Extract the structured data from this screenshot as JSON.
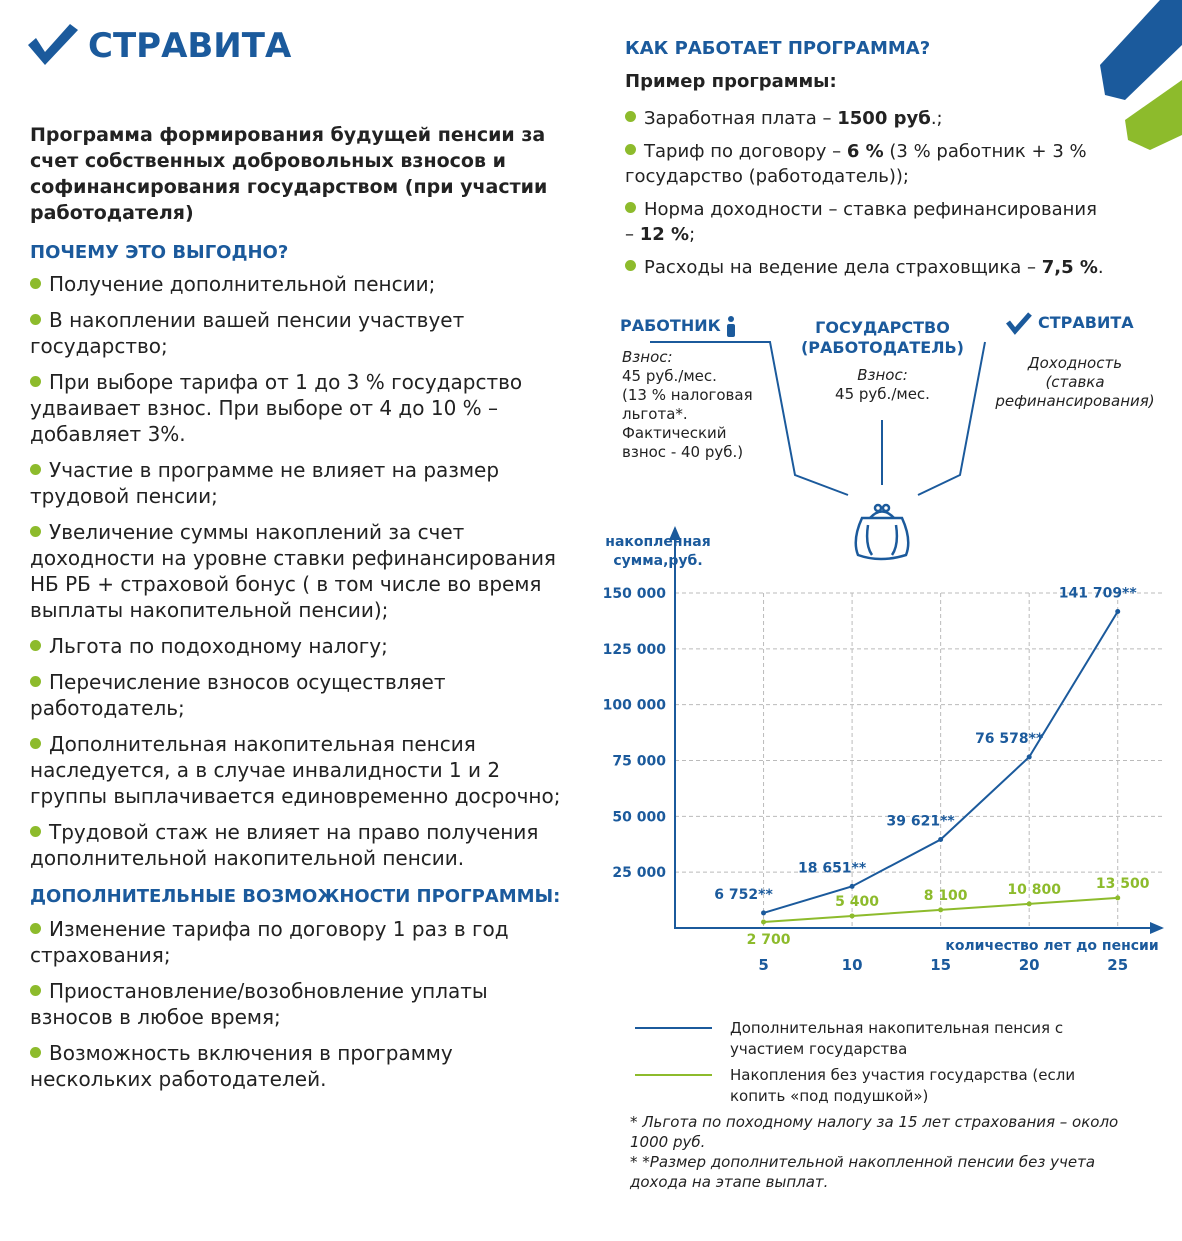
{
  "logo": "СТРАВИТА",
  "intro": "Программа формирования будущей пенсии за счет собственных добровольных взносов и софинансирования государством (при участии работодателя)",
  "benefits": {
    "heading": "ПОЧЕМУ ЭТО ВЫГОДНО?",
    "items": [
      "Получение дополнительной пенсии;",
      "В накоплении вашей пенсии участвует государство;",
      "При выборе тарифа от 1 до 3 % государство удваивает взнос. При выборе от 4 до 10 % – добавляет 3%.",
      "Участие в программе не влияет на размер трудовой пенсии;",
      "Увеличение суммы накоплений за счет доходности на уровне ставки рефинансирования НБ РБ + страховой бонус ( в том числе во время выплаты накопительной пенсии);",
      "Льгота по подоходному налогу;",
      "Перечисление взносов осуществляет работодатель;",
      "Дополнительная накопительная пенсия наследуется, а в случае инвалидности 1 и 2 группы выплачивается единовременно досрочно;",
      "Трудовой стаж не влияет на право получения дополнительной накопительной пенсии."
    ]
  },
  "extras": {
    "heading": "ДОПОЛНИТЕЛЬНЫЕ ВОЗМОЖНОСТИ ПРОГРАММЫ:",
    "items": [
      "Изменение тарифа по договору 1 раз в год страхования;",
      "Приостановление/возобновление уплаты взносов в любое время;",
      "Возможность включения в программу нескольких работодателей."
    ]
  },
  "program": {
    "heading": "КАК РАБОТАЕТ ПРОГРАММА?",
    "example_title": "Пример программы:",
    "items": [
      {
        "parts": [
          {
            "text": "Заработная плата – "
          },
          {
            "text": "1500 руб",
            "bold": true
          },
          {
            "text": ".;"
          }
        ]
      },
      {
        "parts": [
          {
            "text": "Тариф по договору – "
          },
          {
            "text": "6 %",
            "bold": true
          },
          {
            "text": " (3 % работник + 3 % государство (работодатель));"
          }
        ]
      },
      {
        "parts": [
          {
            "text": "Норма доходности – ставка рефинансирования – "
          },
          {
            "text": "12 %",
            "bold": true
          },
          {
            "text": ";"
          }
        ]
      },
      {
        "parts": [
          {
            "text": "Расходы на ведение дела страховщика – "
          },
          {
            "text": "7,5 %",
            "bold": true
          },
          {
            "text": "."
          }
        ]
      }
    ]
  },
  "diagram": {
    "worker": {
      "title": "РАБОТНИК",
      "lines": [
        "Взнос:",
        "45 руб./мес.",
        "(13 % налоговая",
        "льгота*.",
        "Фактический",
        "взнос - 40 руб.)"
      ]
    },
    "state": {
      "title": "ГОСУДАРСТВО (РАБОТОДАТЕЛЬ)",
      "lines": [
        "Взнос:",
        "45 руб./мес."
      ]
    },
    "insurer": {
      "title": "СТРАВИТА",
      "lines": [
        "Доходность",
        "(ставка",
        "рефинансирования)"
      ]
    }
  },
  "chart_data": {
    "type": "line",
    "y_label": "накопленная сумма,руб.",
    "x_label": "количество лет до пенсии",
    "x": [
      5,
      10,
      15,
      20,
      25
    ],
    "xlim": [
      0,
      27.5
    ],
    "xticks": [
      5,
      10,
      15,
      20,
      25
    ],
    "ylim": [
      0,
      150000
    ],
    "yticks": [
      {
        "value": 25000,
        "label": "25 000"
      },
      {
        "value": 50000,
        "label": "50 000"
      },
      {
        "value": 75000,
        "label": "75 000"
      },
      {
        "value": 100000,
        "label": "100 000"
      },
      {
        "value": 125000,
        "label": "125 000"
      },
      {
        "value": 150000,
        "label": "150 000"
      }
    ],
    "grid": true,
    "series": [
      {
        "name": "Дополнительная накопительная пенсия с участием государства",
        "color": "#1b5a9c",
        "values": [
          6752,
          18651,
          39621,
          76578,
          141709
        ],
        "value_labels": [
          "6 752**",
          "18 651**",
          "39 621**",
          "76 578**",
          "141 709**"
        ]
      },
      {
        "name": "Накопления без участия государства (если копить «под подушкой»)",
        "color": "#8dbb2c",
        "values": [
          2700,
          5400,
          8100,
          10800,
          13500
        ],
        "value_labels": [
          "2 700",
          "5 400",
          "8 100",
          "10 800",
          "13 500"
        ]
      }
    ]
  },
  "footnotes": [
    "* Льгота по походному налогу за 15 лет страхования – около 1000 руб.",
    "* *Размер дополнительной накопленной пенсии без учета дохода на этапе выплат."
  ]
}
